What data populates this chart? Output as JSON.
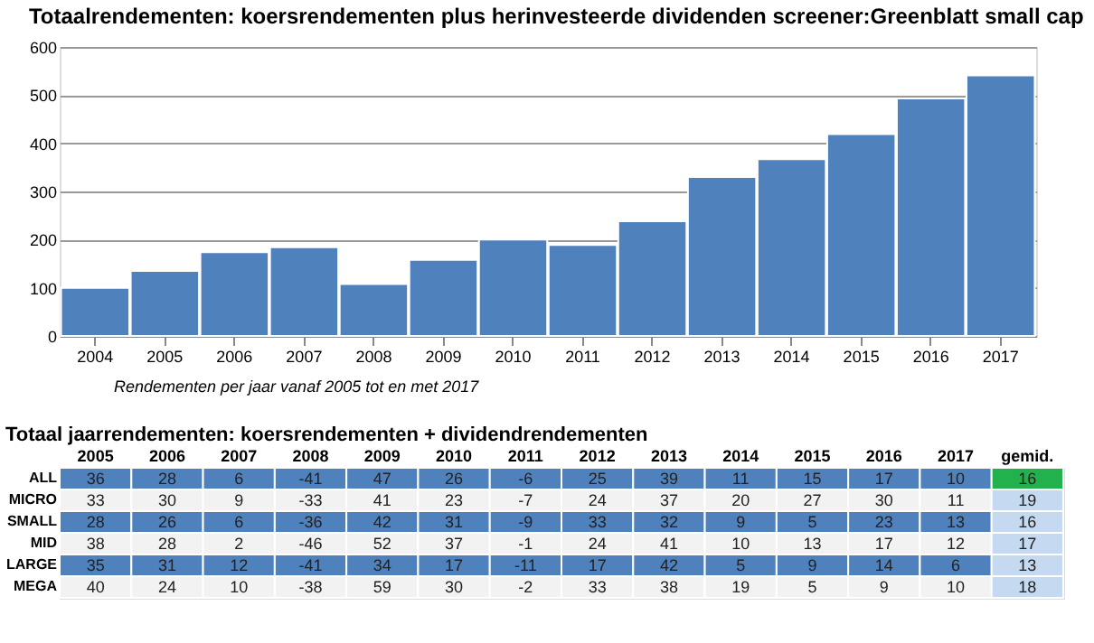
{
  "chart_data": [
    {
      "type": "bar",
      "title": "Totaalrendementen: koersrendementen plus herinvesteerde dividenden screener:Greenblatt small cap",
      "categories": [
        "2004",
        "2005",
        "2006",
        "2007",
        "2008",
        "2009",
        "2010",
        "2011",
        "2012",
        "2013",
        "2014",
        "2015",
        "2016",
        "2017"
      ],
      "values": [
        100,
        135,
        174,
        184,
        108,
        158,
        200,
        189,
        238,
        330,
        367,
        419,
        493,
        541
      ],
      "color": "#4f81bd",
      "ylim": [
        0,
        600
      ],
      "yticks": [
        0,
        100,
        200,
        300,
        400,
        500,
        600
      ],
      "grid": "y",
      "annotations": [
        "Rendementen per jaar vanaf 2005 tot en met 2017"
      ]
    },
    {
      "type": "heatmap",
      "title": "Totaal jaarrendementen: koersrendementen + dividendrendementen",
      "categories": [
        "2005",
        "2006",
        "2007",
        "2008",
        "2009",
        "2010",
        "2011",
        "2012",
        "2013",
        "2014",
        "2015",
        "2016",
        "2017",
        "gemid."
      ],
      "y_categories": [
        "ALL",
        "MICRO",
        "SMALL",
        "MID",
        "LARGE",
        "MEGA"
      ],
      "cells": [
        [
          36,
          28,
          6,
          -41,
          47,
          26,
          -6,
          25,
          39,
          11,
          15,
          17,
          10,
          16
        ],
        [
          33,
          30,
          9,
          -33,
          41,
          23,
          -7,
          24,
          37,
          20,
          27,
          30,
          11,
          19
        ],
        [
          28,
          26,
          6,
          -36,
          42,
          31,
          -9,
          33,
          32,
          9,
          5,
          23,
          13,
          16
        ],
        [
          38,
          28,
          2,
          -46,
          52,
          37,
          -1,
          24,
          41,
          10,
          13,
          17,
          12,
          17
        ],
        [
          35,
          31,
          12,
          -41,
          34,
          17,
          -11,
          17,
          42,
          5,
          9,
          14,
          6,
          13
        ],
        [
          40,
          24,
          10,
          -38,
          59,
          30,
          -2,
          33,
          38,
          19,
          5,
          9,
          10,
          18
        ]
      ],
      "data_labels": true
    }
  ]
}
